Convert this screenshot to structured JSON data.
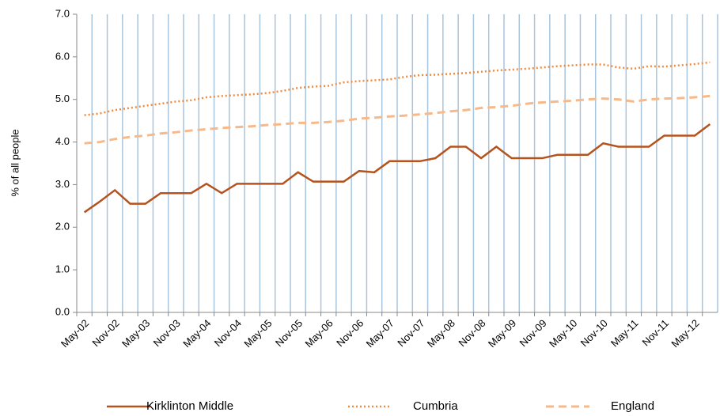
{
  "chart_data": {
    "type": "line",
    "y_label": "% of all people",
    "categories": [
      "May-02",
      null,
      "Nov-02",
      null,
      "May-03",
      null,
      "Nov-03",
      null,
      "May-04",
      null,
      "Nov-04",
      null,
      "May-05",
      null,
      "Nov-05",
      null,
      "May-06",
      null,
      "Nov-06",
      null,
      "May-07",
      null,
      "Nov-07",
      null,
      "May-08",
      null,
      "Nov-08",
      null,
      "May-09",
      null,
      "Nov-09",
      null,
      "May-10",
      null,
      "Nov-10",
      null,
      "May-11",
      null,
      "Nov-11",
      null,
      "May-12",
      null
    ],
    "series": [
      {
        "name": "Kirklinton Middle",
        "color": "#b5531f",
        "dash": "solid",
        "values": [
          2.35,
          2.6,
          2.87,
          2.55,
          2.55,
          2.8,
          2.8,
          2.8,
          3.02,
          2.8,
          3.02,
          3.02,
          3.02,
          3.02,
          3.29,
          3.07,
          3.07,
          3.07,
          3.32,
          3.29,
          3.55,
          3.55,
          3.55,
          3.62,
          3.89,
          3.89,
          3.62,
          3.89,
          3.62,
          3.62,
          3.62,
          3.7,
          3.7,
          3.7,
          3.97,
          3.89,
          3.89,
          3.89,
          4.15,
          4.15,
          4.15,
          4.42
        ]
      },
      {
        "name": "Cumbria",
        "color": "#f08a3c",
        "dash": "dotted",
        "values": [
          4.63,
          4.67,
          4.75,
          4.8,
          4.85,
          4.9,
          4.95,
          4.98,
          5.05,
          5.08,
          5.1,
          5.12,
          5.15,
          5.2,
          5.27,
          5.3,
          5.32,
          5.4,
          5.43,
          5.45,
          5.47,
          5.53,
          5.57,
          5.58,
          5.6,
          5.62,
          5.65,
          5.68,
          5.7,
          5.72,
          5.75,
          5.78,
          5.8,
          5.82,
          5.82,
          5.75,
          5.72,
          5.78,
          5.77,
          5.8,
          5.83,
          5.87
        ]
      },
      {
        "name": "England",
        "color": "#f7b98a",
        "dash": "dashed",
        "values": [
          3.97,
          4.0,
          4.07,
          4.12,
          4.15,
          4.2,
          4.23,
          4.27,
          4.3,
          4.33,
          4.35,
          4.37,
          4.4,
          4.42,
          4.45,
          4.45,
          4.47,
          4.5,
          4.55,
          4.57,
          4.6,
          4.62,
          4.65,
          4.68,
          4.72,
          4.75,
          4.8,
          4.82,
          4.85,
          4.9,
          4.93,
          4.95,
          4.97,
          5.0,
          5.02,
          5.0,
          4.95,
          5.0,
          5.02,
          5.03,
          5.05,
          5.08
        ]
      }
    ],
    "ylim": [
      0,
      7
    ],
    "yticks": [
      {
        "value": 0,
        "label": "0.0"
      },
      {
        "value": 1,
        "label": "1.0"
      },
      {
        "value": 2,
        "label": "2.0"
      },
      {
        "value": 3,
        "label": "3.0"
      },
      {
        "value": 4,
        "label": "4.0"
      },
      {
        "value": 5,
        "label": "5.0"
      },
      {
        "value": 6,
        "label": "6.0"
      },
      {
        "value": 7,
        "label": "7.0"
      }
    ],
    "grid": true,
    "grid_axis": "x",
    "legend": "bottom"
  }
}
